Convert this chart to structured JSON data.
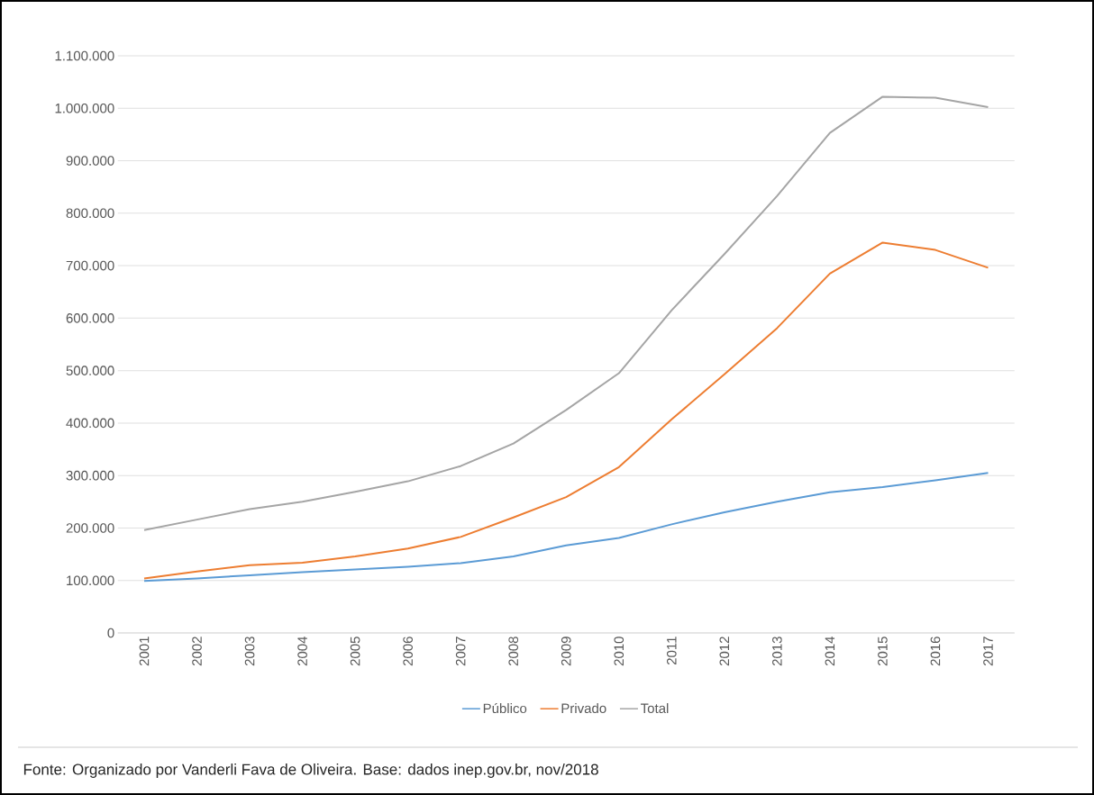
{
  "chart_data": {
    "type": "line",
    "categories": [
      "2001",
      "2002",
      "2003",
      "2004",
      "2005",
      "2006",
      "2007",
      "2008",
      "2009",
      "2010",
      "2011",
      "2012",
      "2013",
      "2014",
      "2015",
      "2016",
      "2017"
    ],
    "series": [
      {
        "name": "Público",
        "color": "#5b9bd5",
        "values": [
          99000,
          104000,
          110000,
          116000,
          121000,
          126000,
          133000,
          146000,
          167000,
          181000,
          207000,
          230000,
          250000,
          268000,
          278000,
          291000,
          305000
        ]
      },
      {
        "name": "Privado",
        "color": "#ed7d31",
        "values": [
          104000,
          117000,
          129000,
          134000,
          146000,
          161000,
          183000,
          220000,
          259000,
          316000,
          407000,
          493000,
          581000,
          685000,
          744000,
          730000,
          696000
        ]
      },
      {
        "name": "Total",
        "color": "#a5a5a5",
        "values": [
          196000,
          216000,
          236000,
          250000,
          269000,
          289000,
          318000,
          361000,
          425000,
          495000,
          615000,
          722000,
          833000,
          953000,
          1022000,
          1020000,
          1002000
        ]
      }
    ],
    "ylim": [
      0,
      1100000
    ],
    "yticks": [
      0,
      {
        "value": 100000,
        "label": "100.000"
      },
      {
        "value": 200000,
        "label": "200.000"
      },
      {
        "value": 300000,
        "label": "300.000"
      },
      {
        "value": 400000,
        "label": "400.000"
      },
      {
        "value": 500000,
        "label": "500.000"
      },
      {
        "value": 600000,
        "label": "600.000"
      },
      {
        "value": 700000,
        "label": "700.000"
      },
      {
        "value": 800000,
        "label": "800.000"
      },
      {
        "value": 900000,
        "label": "900.000"
      },
      {
        "value": 1000000,
        "label": "1.000.000"
      },
      {
        "value": 1100000,
        "label": "1.100.000"
      }
    ],
    "grid": "y",
    "legend": "bottom",
    "annotations": [
      "Fonte: Organizado por Vanderli Fava de Oliveira. Base: dados inep.gov.br, nov/2018"
    ]
  }
}
